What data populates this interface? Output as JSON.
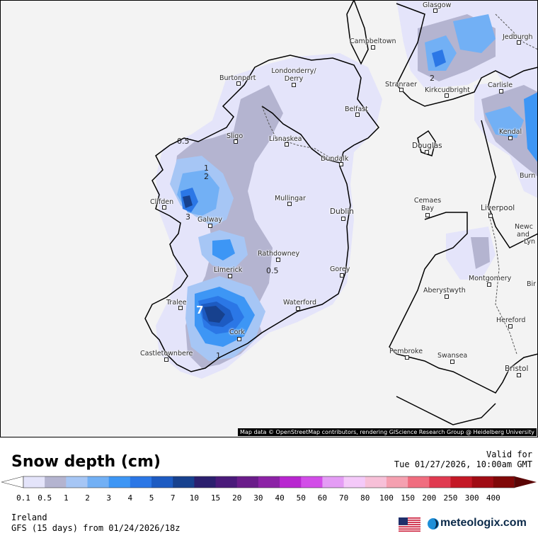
{
  "map": {
    "attribution": "Map data © OpenStreetMap contributors, rendering GIScience Research Group @ Heidelberg University",
    "cities": [
      {
        "name": "Glasgow"
      },
      {
        "name": "Jedburgh"
      },
      {
        "name": "Campbeltown"
      },
      {
        "name": "Stranraer"
      },
      {
        "name": "Kirkcudbright"
      },
      {
        "name": "Carlisle"
      },
      {
        "name": "Kendal"
      },
      {
        "name": "Burtonport"
      },
      {
        "name": "Londonderry/ Derry"
      },
      {
        "name": "Belfast"
      },
      {
        "name": "Sligo"
      },
      {
        "name": "Lisnaskea"
      },
      {
        "name": "Dundalk"
      },
      {
        "name": "Douglas"
      },
      {
        "name": "Clifden"
      },
      {
        "name": "Galway"
      },
      {
        "name": "Mullingar"
      },
      {
        "name": "Dublin"
      },
      {
        "name": "Cemaes Bay"
      },
      {
        "name": "Liverpool"
      },
      {
        "name": "Rathdowney"
      },
      {
        "name": "Limerick"
      },
      {
        "name": "Gorey"
      },
      {
        "name": "Montgomery"
      },
      {
        "name": "Aberystwyth"
      },
      {
        "name": "Tralee"
      },
      {
        "name": "Waterford"
      },
      {
        "name": "Cork"
      },
      {
        "name": "Hereford"
      },
      {
        "name": "Castletownbere"
      },
      {
        "name": "Pembroke"
      },
      {
        "name": "Swansea"
      },
      {
        "name": "Bristol"
      },
      {
        "name": "Burn"
      },
      {
        "name": "Newc"
      },
      {
        "name": "and"
      },
      {
        "name": "Lyn"
      },
      {
        "name": "Bir"
      }
    ],
    "contour_labels": [
      "0.5",
      "1",
      "2",
      "3",
      "0.5",
      "7",
      "1",
      "2"
    ]
  },
  "legend": {
    "title": "Snow depth (cm)",
    "valid_label": "Valid for",
    "valid_time": "Tue 01/27/2026, 10:00am GMT",
    "ticks": [
      "0.1",
      "0.5",
      "1",
      "2",
      "3",
      "4",
      "5",
      "7",
      "10",
      "15",
      "20",
      "30",
      "40",
      "50",
      "60",
      "70",
      "80",
      "100",
      "150",
      "200",
      "250",
      "300",
      "400"
    ],
    "colors": [
      "#e4e4fa",
      "#b4b4d0",
      "#a6c6f5",
      "#72b0f5",
      "#3d96f5",
      "#2b77e6",
      "#1d5bc2",
      "#17418e",
      "#2b1f6e",
      "#4a1a7a",
      "#6a1c8a",
      "#8c22a6",
      "#b826d0",
      "#d24de8",
      "#e49cf5",
      "#f4c9f9",
      "#f7c0d8",
      "#f5a0b0",
      "#f06d7f",
      "#e03a50",
      "#c41826",
      "#a00c14",
      "#800808",
      "#5a0505"
    ]
  },
  "region": "Ireland",
  "model": "GFS (15 days) from 01/24/2026/18z",
  "brand": "meteologix.com"
}
